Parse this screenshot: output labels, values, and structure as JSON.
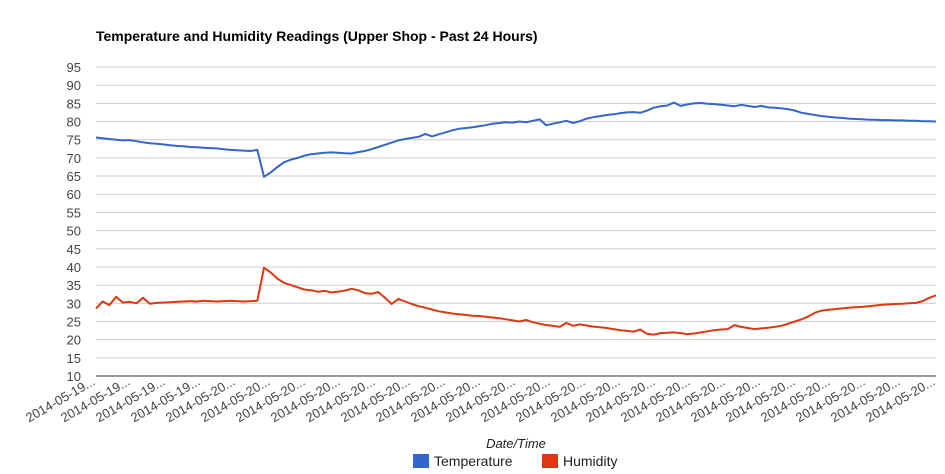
{
  "chart_data": {
    "type": "line",
    "title": "Temperature and Humidity Readings (Upper Shop - Past 24 Hours)",
    "xlabel": "Date/Time",
    "ylabel": "",
    "ylim": [
      10,
      95
    ],
    "yticks": [
      10,
      15,
      20,
      25,
      30,
      35,
      40,
      45,
      50,
      55,
      60,
      65,
      70,
      75,
      80,
      85,
      90,
      95
    ],
    "x_tick_labels": [
      "2014-05-19...",
      "2014-05-19...",
      "2014-05-19...",
      "2014-05-19...",
      "2014-05-20...",
      "2014-05-20...",
      "2014-05-20...",
      "2014-05-20...",
      "2014-05-20...",
      "2014-05-20...",
      "2014-05-20...",
      "2014-05-20...",
      "2014-05-20...",
      "2014-05-20...",
      "2014-05-20...",
      "2014-05-20...",
      "2014-05-20...",
      "2014-05-20...",
      "2014-05-20...",
      "2014-05-20...",
      "2014-05-20...",
      "2014-05-20...",
      "2014-05-20...",
      "2014-05-20...",
      "2014-05-20..."
    ],
    "grid": true,
    "legend": "bottom",
    "series": [
      {
        "name": "Temperature",
        "color": "#3366cc",
        "values": [
          75.6,
          75.4,
          75.2,
          75.0,
          74.8,
          74.9,
          74.6,
          74.3,
          74.0,
          73.9,
          73.7,
          73.5,
          73.3,
          73.2,
          73.0,
          72.9,
          72.8,
          72.7,
          72.6,
          72.4,
          72.2,
          72.1,
          72.0,
          71.9,
          72.2,
          64.8,
          66.0,
          67.5,
          68.8,
          69.5,
          70.0,
          70.6,
          71.0,
          71.2,
          71.4,
          71.5,
          71.4,
          71.3,
          71.2,
          71.6,
          71.9,
          72.4,
          73.0,
          73.6,
          74.2,
          74.8,
          75.2,
          75.5,
          75.8,
          76.6,
          75.9,
          76.5,
          77.0,
          77.6,
          78.0,
          78.2,
          78.4,
          78.7,
          79.0,
          79.4,
          79.6,
          79.8,
          79.7,
          80.0,
          79.8,
          80.2,
          80.6,
          79.0,
          79.4,
          79.8,
          80.2,
          79.6,
          80.1,
          80.8,
          81.2,
          81.5,
          81.8,
          82.0,
          82.3,
          82.5,
          82.6,
          82.4,
          83.0,
          83.8,
          84.2,
          84.4,
          85.2,
          84.3,
          84.7,
          85.0,
          85.1,
          84.9,
          84.8,
          84.6,
          84.4,
          84.2,
          84.6,
          84.3,
          84.0,
          84.3,
          83.9,
          83.8,
          83.6,
          83.4,
          83.0,
          82.4,
          82.1,
          81.8,
          81.5,
          81.3,
          81.1,
          81.0,
          80.8,
          80.7,
          80.6,
          80.5,
          80.5,
          80.4,
          80.4,
          80.3,
          80.3,
          80.2,
          80.2,
          80.1,
          80.1,
          80.0
        ]
      },
      {
        "name": "Humidity",
        "color": "#dc3912",
        "values": [
          28.6,
          30.5,
          29.5,
          31.8,
          30.2,
          30.4,
          30.0,
          31.5,
          29.9,
          30.1,
          30.2,
          30.3,
          30.4,
          30.5,
          30.6,
          30.5,
          30.7,
          30.6,
          30.5,
          30.6,
          30.7,
          30.6,
          30.5,
          30.6,
          30.7,
          39.8,
          38.5,
          36.8,
          35.6,
          35.0,
          34.4,
          33.8,
          33.6,
          33.2,
          33.4,
          33.0,
          33.2,
          33.5,
          34.0,
          33.6,
          32.8,
          32.6,
          33.1,
          31.5,
          29.8,
          31.2,
          30.5,
          29.8,
          29.2,
          28.8,
          28.3,
          27.8,
          27.5,
          27.2,
          27.0,
          26.8,
          26.6,
          26.5,
          26.3,
          26.1,
          25.9,
          25.6,
          25.3,
          25.0,
          25.4,
          24.8,
          24.4,
          24.0,
          23.8,
          23.5,
          24.6,
          23.8,
          24.2,
          23.9,
          23.6,
          23.4,
          23.2,
          22.9,
          22.6,
          22.4,
          22.2,
          22.8,
          21.6,
          21.4,
          21.8,
          21.9,
          22.0,
          21.8,
          21.5,
          21.7,
          22.0,
          22.3,
          22.6,
          22.8,
          22.9,
          24.0,
          23.5,
          23.2,
          22.9,
          23.1,
          23.3,
          23.5,
          23.8,
          24.4,
          25.0,
          25.6,
          26.4,
          27.4,
          28.0,
          28.2,
          28.4,
          28.6,
          28.8,
          28.9,
          29.0,
          29.2,
          29.4,
          29.6,
          29.7,
          29.8,
          29.9,
          30.0,
          30.1,
          30.6,
          31.5,
          32.2
        ]
      }
    ]
  }
}
